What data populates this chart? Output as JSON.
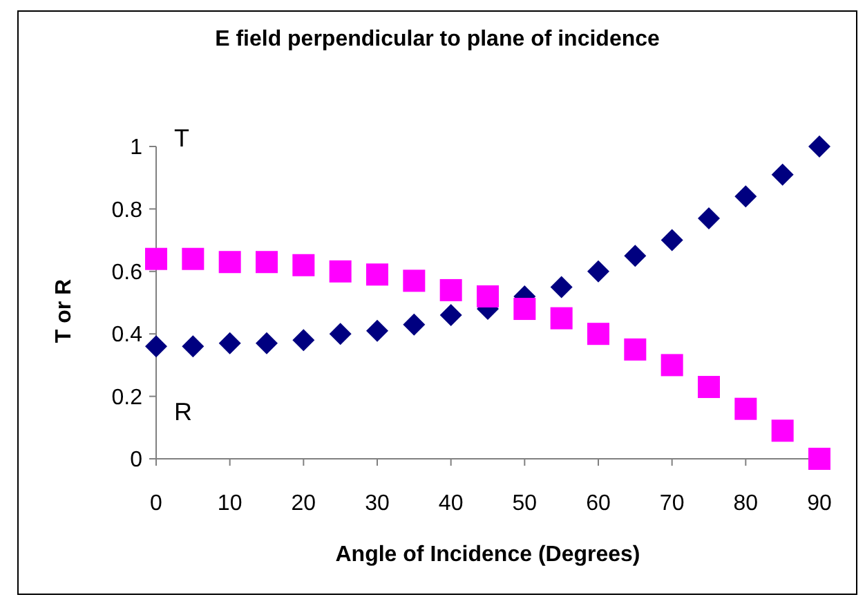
{
  "chart_data": {
    "type": "scatter",
    "title": "E field perpendicular to plane of incidence",
    "xlabel": "Angle of Incidence (Degrees)",
    "ylabel": "T or R",
    "x": [
      0,
      5,
      10,
      15,
      20,
      25,
      30,
      35,
      40,
      45,
      50,
      55,
      60,
      65,
      70,
      75,
      80,
      85,
      90
    ],
    "series": [
      {
        "color": "#000080",
        "marker": "diamond",
        "values": [
          0.36,
          0.36,
          0.37,
          0.37,
          0.38,
          0.4,
          0.41,
          0.43,
          0.46,
          0.48,
          0.52,
          0.55,
          0.6,
          0.65,
          0.7,
          0.77,
          0.84,
          0.91,
          1.0
        ]
      },
      {
        "color": "#ff00ff",
        "marker": "square",
        "values": [
          0.64,
          0.64,
          0.63,
          0.63,
          0.62,
          0.6,
          0.59,
          0.57,
          0.54,
          0.52,
          0.48,
          0.45,
          0.4,
          0.35,
          0.3,
          0.23,
          0.16,
          0.09,
          0
        ]
      }
    ],
    "xlim": [
      0,
      90
    ],
    "xticks": [
      0,
      10,
      20,
      30,
      40,
      50,
      60,
      70,
      80,
      90
    ],
    "ylim": [
      0,
      1
    ],
    "yticks": [
      0,
      0.2,
      0.4,
      0.6,
      0.8,
      1
    ],
    "annotations": [
      "T",
      "R"
    ],
    "grid": false
  }
}
